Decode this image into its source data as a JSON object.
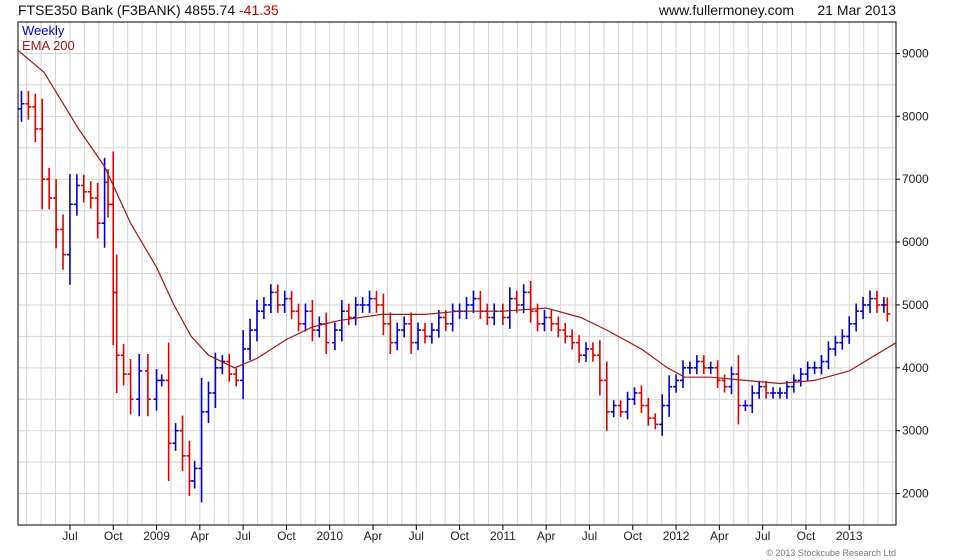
{
  "header": {
    "instrument": "FTSE350 Bank (F3BANK)",
    "last": "4855.74",
    "change": "-41.35",
    "site": "www.fullermoney.com",
    "date": "21 Mar 2013"
  },
  "copyright": "© 2013 Stockcube Research Ltd",
  "colors": {
    "up": "#0000cc",
    "down": "#e00000",
    "ema": "#a01818",
    "grid": "#d4d4d4",
    "axis": "#000000"
  },
  "chart_data": {
    "type": "line",
    "title": "FTSE350 Bank (F3BANK)",
    "legend": [
      "Weekly",
      "EMA 200"
    ],
    "legend_placement": "top-left",
    "grid": true,
    "ylim": [
      1500,
      9500
    ],
    "y_ticks": [
      2000,
      3000,
      4000,
      5000,
      6000,
      7000,
      8000,
      9000
    ],
    "y_tick_labels": [
      "2000",
      "3000",
      "4000",
      "5000",
      "6000",
      "7000",
      "8000",
      "9000"
    ],
    "x_ticks": [
      {
        "label": "Jul",
        "t": 2008.5
      },
      {
        "label": "Oct",
        "t": 2008.75
      },
      {
        "label": "2009",
        "t": 2009.0
      },
      {
        "label": "Apr",
        "t": 2009.25
      },
      {
        "label": "Jul",
        "t": 2009.5
      },
      {
        "label": "Oct",
        "t": 2009.75
      },
      {
        "label": "2010",
        "t": 2010.0
      },
      {
        "label": "Apr",
        "t": 2010.25
      },
      {
        "label": "Jul",
        "t": 2010.5
      },
      {
        "label": "Oct",
        "t": 2010.75
      },
      {
        "label": "2011",
        "t": 2011.0
      },
      {
        "label": "Apr",
        "t": 2011.25
      },
      {
        "label": "Jul",
        "t": 2011.5
      },
      {
        "label": "Oct",
        "t": 2011.75
      },
      {
        "label": "2012",
        "t": 2012.0
      },
      {
        "label": "Apr",
        "t": 2012.25
      },
      {
        "label": "Jul",
        "t": 2012.5
      },
      {
        "label": "Oct",
        "t": 2012.75
      },
      {
        "label": "2013",
        "t": 2013.0
      }
    ],
    "xlim": [
      2008.2,
      2013.27
    ],
    "series": [
      {
        "name": "Weekly",
        "kind": "close",
        "points": [
          [
            2008.22,
            8200
          ],
          [
            2008.26,
            8150
          ],
          [
            2008.3,
            7800
          ],
          [
            2008.34,
            7000
          ],
          [
            2008.38,
            6700
          ],
          [
            2008.42,
            6200
          ],
          [
            2008.46,
            5800
          ],
          [
            2008.5,
            6600
          ],
          [
            2008.54,
            6900
          ],
          [
            2008.58,
            6800
          ],
          [
            2008.62,
            6700
          ],
          [
            2008.66,
            6300
          ],
          [
            2008.7,
            6950
          ],
          [
            2008.72,
            6600
          ],
          [
            2008.75,
            5200
          ],
          [
            2008.77,
            4200
          ],
          [
            2008.81,
            3900
          ],
          [
            2008.85,
            3500
          ],
          [
            2008.9,
            3950
          ],
          [
            2008.95,
            3500
          ],
          [
            2009.0,
            3800
          ],
          [
            2009.03,
            3800
          ],
          [
            2009.07,
            2800
          ],
          [
            2009.11,
            3000
          ],
          [
            2009.15,
            2600
          ],
          [
            2009.19,
            2200
          ],
          [
            2009.22,
            2400
          ],
          [
            2009.26,
            3300
          ],
          [
            2009.3,
            3600
          ],
          [
            2009.34,
            4000
          ],
          [
            2009.38,
            4100
          ],
          [
            2009.42,
            3900
          ],
          [
            2009.46,
            3800
          ],
          [
            2009.5,
            4300
          ],
          [
            2009.54,
            4600
          ],
          [
            2009.58,
            4900
          ],
          [
            2009.62,
            5000
          ],
          [
            2009.66,
            5200
          ],
          [
            2009.7,
            5000
          ],
          [
            2009.74,
            5100
          ],
          [
            2009.78,
            4900
          ],
          [
            2009.82,
            4700
          ],
          [
            2009.86,
            4900
          ],
          [
            2009.9,
            4600
          ],
          [
            2009.94,
            4700
          ],
          [
            2009.98,
            4400
          ],
          [
            2010.03,
            4600
          ],
          [
            2010.07,
            4900
          ],
          [
            2010.11,
            4800
          ],
          [
            2010.15,
            5000
          ],
          [
            2010.19,
            5000
          ],
          [
            2010.23,
            5100
          ],
          [
            2010.27,
            5000
          ],
          [
            2010.31,
            4700
          ],
          [
            2010.35,
            4400
          ],
          [
            2010.39,
            4600
          ],
          [
            2010.43,
            4700
          ],
          [
            2010.47,
            4400
          ],
          [
            2010.51,
            4600
          ],
          [
            2010.55,
            4500
          ],
          [
            2010.59,
            4600
          ],
          [
            2010.63,
            4800
          ],
          [
            2010.67,
            4700
          ],
          [
            2010.71,
            4900
          ],
          [
            2010.75,
            4900
          ],
          [
            2010.79,
            5000
          ],
          [
            2010.83,
            5100
          ],
          [
            2010.87,
            4900
          ],
          [
            2010.91,
            4800
          ],
          [
            2010.95,
            4900
          ],
          [
            2011.0,
            4800
          ],
          [
            2011.04,
            5100
          ],
          [
            2011.08,
            5000
          ],
          [
            2011.12,
            5200
          ],
          [
            2011.16,
            4900
          ],
          [
            2011.2,
            4700
          ],
          [
            2011.24,
            4800
          ],
          [
            2011.28,
            4700
          ],
          [
            2011.32,
            4600
          ],
          [
            2011.36,
            4500
          ],
          [
            2011.4,
            4400
          ],
          [
            2011.44,
            4200
          ],
          [
            2011.48,
            4300
          ],
          [
            2011.52,
            4200
          ],
          [
            2011.56,
            3800
          ],
          [
            2011.6,
            3300
          ],
          [
            2011.64,
            3400
          ],
          [
            2011.68,
            3300
          ],
          [
            2011.72,
            3500
          ],
          [
            2011.76,
            3600
          ],
          [
            2011.8,
            3400
          ],
          [
            2011.84,
            3200
          ],
          [
            2011.88,
            3100
          ],
          [
            2011.92,
            3400
          ],
          [
            2011.96,
            3700
          ],
          [
            2012.0,
            3800
          ],
          [
            2012.04,
            4000
          ],
          [
            2012.08,
            4000
          ],
          [
            2012.12,
            4100
          ],
          [
            2012.16,
            4000
          ],
          [
            2012.2,
            4000
          ],
          [
            2012.24,
            3800
          ],
          [
            2012.28,
            3700
          ],
          [
            2012.32,
            3900
          ],
          [
            2012.36,
            3400
          ],
          [
            2012.4,
            3400
          ],
          [
            2012.44,
            3600
          ],
          [
            2012.48,
            3700
          ],
          [
            2012.52,
            3600
          ],
          [
            2012.56,
            3600
          ],
          [
            2012.6,
            3600
          ],
          [
            2012.64,
            3700
          ],
          [
            2012.68,
            3800
          ],
          [
            2012.72,
            3900
          ],
          [
            2012.76,
            4000
          ],
          [
            2012.8,
            4000
          ],
          [
            2012.84,
            4100
          ],
          [
            2012.88,
            4300
          ],
          [
            2012.92,
            4400
          ],
          [
            2012.96,
            4500
          ],
          [
            2013.0,
            4700
          ],
          [
            2013.04,
            4900
          ],
          [
            2013.08,
            5000
          ],
          [
            2013.12,
            5100
          ],
          [
            2013.16,
            5000
          ],
          [
            2013.2,
            5000
          ],
          [
            2013.22,
            4856
          ]
        ]
      },
      {
        "name": "EMA 200",
        "points": [
          [
            2008.2,
            9050
          ],
          [
            2008.35,
            8700
          ],
          [
            2008.55,
            7800
          ],
          [
            2008.7,
            7200
          ],
          [
            2008.85,
            6300
          ],
          [
            2009.0,
            5600
          ],
          [
            2009.1,
            5000
          ],
          [
            2009.2,
            4500
          ],
          [
            2009.3,
            4200
          ],
          [
            2009.45,
            4000
          ],
          [
            2009.58,
            4150
          ],
          [
            2009.75,
            4450
          ],
          [
            2009.9,
            4650
          ],
          [
            2010.05,
            4750
          ],
          [
            2010.3,
            4850
          ],
          [
            2010.55,
            4850
          ],
          [
            2010.75,
            4900
          ],
          [
            2011.0,
            4900
          ],
          [
            2011.25,
            4950
          ],
          [
            2011.45,
            4800
          ],
          [
            2011.6,
            4600
          ],
          [
            2011.8,
            4300
          ],
          [
            2011.95,
            4000
          ],
          [
            2012.05,
            3850
          ],
          [
            2012.2,
            3850
          ],
          [
            2012.4,
            3800
          ],
          [
            2012.6,
            3750
          ],
          [
            2012.8,
            3800
          ],
          [
            2013.0,
            3950
          ],
          [
            2013.15,
            4200
          ],
          [
            2013.27,
            4400
          ]
        ]
      }
    ]
  }
}
